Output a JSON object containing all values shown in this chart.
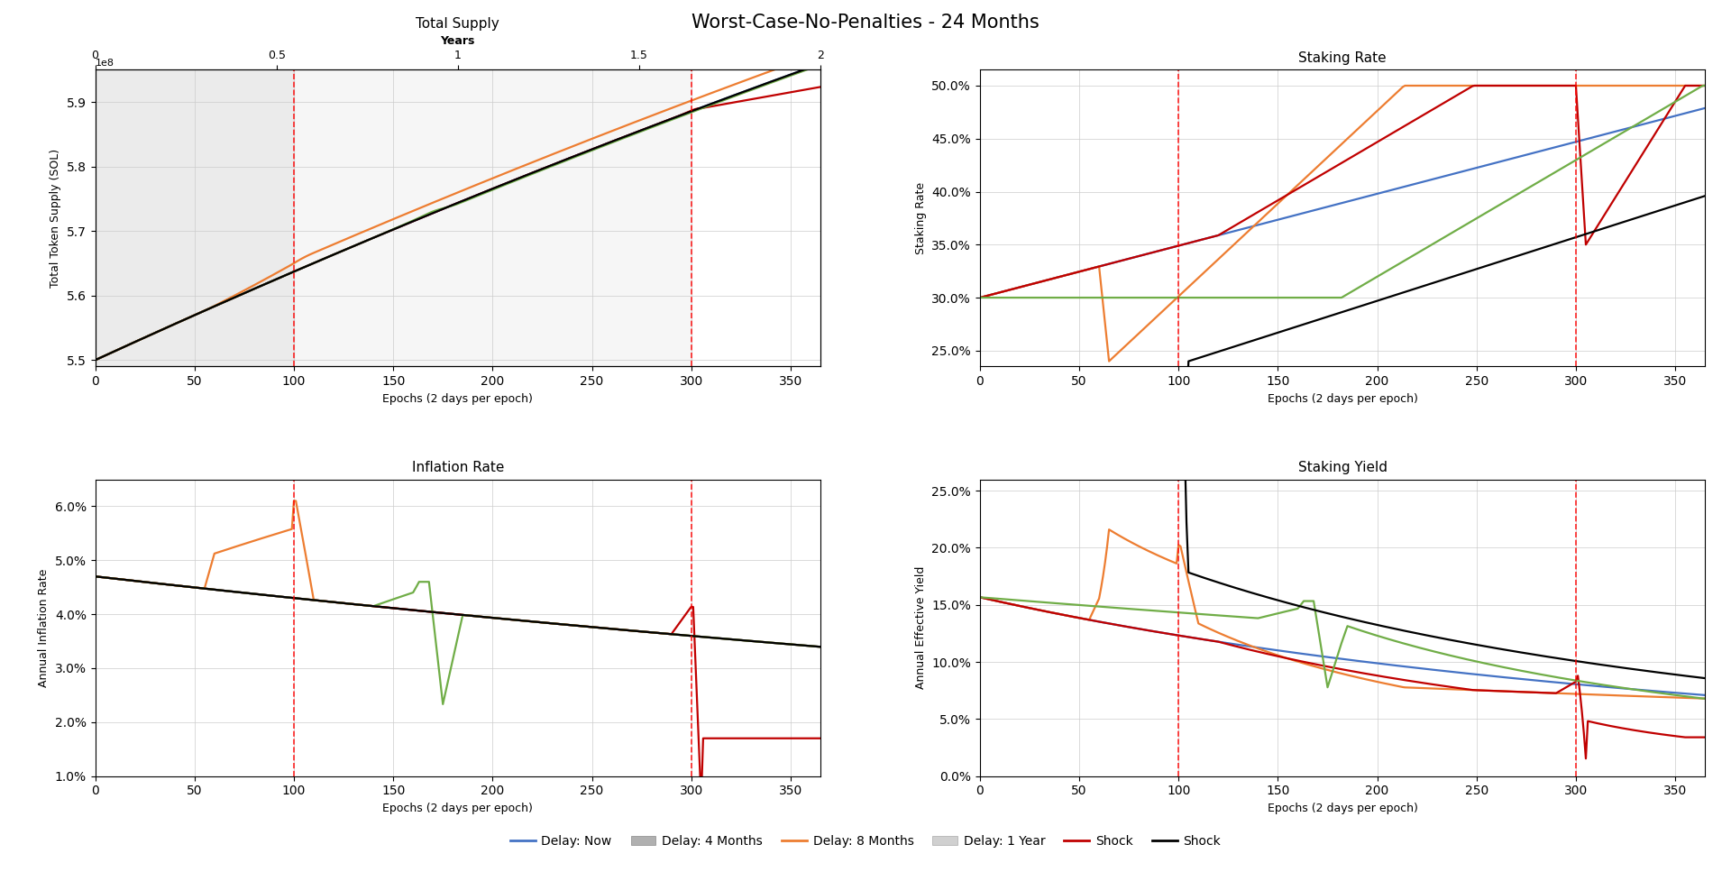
{
  "title": "Worst-Case-No-Penalties - 24 Months",
  "total_epochs": 365,
  "vline1": 100,
  "vline2": 300,
  "epochs_per_year": 182.5,
  "initial_supply": 550000000,
  "colors": {
    "delay_now": "#4472C4",
    "delay_4m": "#ED7D31",
    "delay_8m": "#C00000",
    "delay_1y": "#70AD47",
    "shock": "#000000"
  },
  "legend_labels": [
    "Delay: Now",
    "Delay: 4 Months",
    "Delay: 8 Months",
    "Delay: 1 Year",
    "Shock"
  ],
  "subplot_titles": [
    "Total Supply",
    "Staking Rate",
    "Inflation Rate",
    "Staking Yield"
  ],
  "xlabel": "Epochs (2 days per epoch)",
  "ylabel_supply": "Total Token Supply (SOL)",
  "ylabel_inflation": "Annual Inflation Rate",
  "ylabel_staking": "Staking Rate",
  "ylabel_yield": "Annual Effective Yield",
  "secondary_xlabel": "Years",
  "supply_ylim": [
    549000000.0,
    595000000.0
  ],
  "staking_rate_ylim": [
    0.235,
    0.515
  ],
  "inflation_ylim": [
    0.01,
    0.065
  ],
  "yield_ylim": [
    0.0,
    0.26
  ],
  "vline_color": "#FF0000",
  "shade1_alpha": 0.35,
  "shade2_alpha": 0.15,
  "shade_color": "#C8C8C8"
}
